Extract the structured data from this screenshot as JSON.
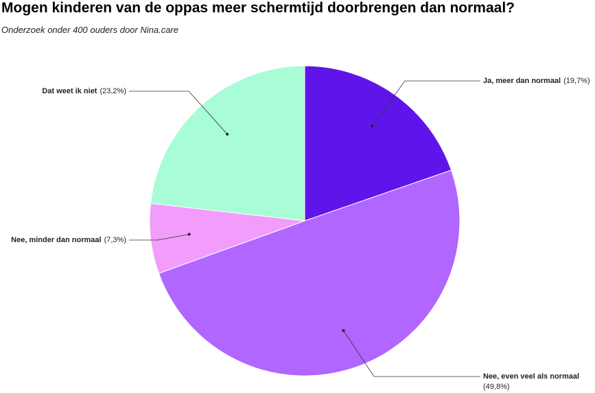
{
  "chart_data": {
    "type": "pie",
    "title": "Mogen kinderen van de oppas meer schermtijd doorbrengen dan normaal?",
    "subtitle": "Onderzoek onder 400 ouders door Nina.care",
    "categories": [
      "Ja, meer dan normaal",
      "Nee, even veel als normaal",
      "Nee, minder dan normaal",
      "Dat weet ik niet"
    ],
    "values": [
      19.7,
      49.8,
      7.3,
      23.2
    ],
    "value_labels": [
      "(19,7%)",
      "(49,8%)",
      "(7,3%)",
      "(23,2%)"
    ],
    "colors": [
      "#5f15ea",
      "#b066ff",
      "#f29cfc",
      "#a8fcd6"
    ]
  }
}
